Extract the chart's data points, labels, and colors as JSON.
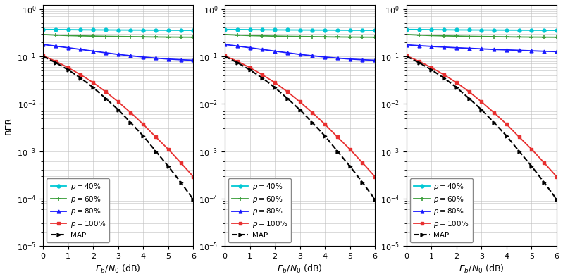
{
  "snr": [
    0,
    0.5,
    1,
    1.5,
    2,
    2.5,
    3,
    3.5,
    4,
    4.5,
    5,
    5.5,
    6
  ],
  "panels": [
    {
      "p40": [
        0.37,
        0.368,
        0.366,
        0.364,
        0.362,
        0.361,
        0.36,
        0.359,
        0.358,
        0.357,
        0.356,
        0.355,
        0.354
      ],
      "p60": [
        0.29,
        0.282,
        0.276,
        0.272,
        0.268,
        0.265,
        0.263,
        0.261,
        0.259,
        0.257,
        0.256,
        0.255,
        0.254
      ],
      "p80": [
        0.178,
        0.165,
        0.152,
        0.14,
        0.129,
        0.119,
        0.11,
        0.103,
        0.097,
        0.092,
        0.088,
        0.085,
        0.083
      ],
      "p100": [
        0.103,
        0.079,
        0.058,
        0.041,
        0.028,
        0.018,
        0.011,
        0.0065,
        0.0037,
        0.002,
        0.0011,
        0.00057,
        0.00029
      ],
      "map": [
        0.1,
        0.074,
        0.052,
        0.035,
        0.022,
        0.013,
        0.0075,
        0.004,
        0.0021,
        0.001,
        0.00048,
        0.00022,
        9.6e-05
      ]
    },
    {
      "p40": [
        0.37,
        0.368,
        0.366,
        0.364,
        0.362,
        0.361,
        0.36,
        0.359,
        0.358,
        0.357,
        0.356,
        0.355,
        0.354
      ],
      "p60": [
        0.29,
        0.282,
        0.276,
        0.272,
        0.268,
        0.265,
        0.263,
        0.261,
        0.259,
        0.257,
        0.256,
        0.255,
        0.254
      ],
      "p80": [
        0.178,
        0.165,
        0.152,
        0.14,
        0.129,
        0.119,
        0.11,
        0.103,
        0.097,
        0.092,
        0.088,
        0.085,
        0.083
      ],
      "p100": [
        0.103,
        0.079,
        0.058,
        0.041,
        0.028,
        0.018,
        0.011,
        0.0065,
        0.0037,
        0.002,
        0.0011,
        0.00057,
        0.00029
      ],
      "map": [
        0.1,
        0.074,
        0.052,
        0.035,
        0.022,
        0.013,
        0.0075,
        0.004,
        0.0021,
        0.001,
        0.00048,
        0.00022,
        9.6e-05
      ]
    },
    {
      "p40": [
        0.37,
        0.368,
        0.366,
        0.364,
        0.362,
        0.361,
        0.36,
        0.359,
        0.358,
        0.357,
        0.356,
        0.355,
        0.354
      ],
      "p60": [
        0.29,
        0.282,
        0.276,
        0.272,
        0.268,
        0.265,
        0.263,
        0.261,
        0.259,
        0.257,
        0.256,
        0.255,
        0.254
      ],
      "p80": [
        0.175,
        0.168,
        0.162,
        0.157,
        0.152,
        0.148,
        0.144,
        0.14,
        0.137,
        0.134,
        0.131,
        0.128,
        0.126
      ],
      "p100": [
        0.103,
        0.079,
        0.058,
        0.041,
        0.028,
        0.018,
        0.011,
        0.0065,
        0.0037,
        0.002,
        0.0011,
        0.00057,
        0.00029
      ],
      "map": [
        0.1,
        0.074,
        0.052,
        0.035,
        0.022,
        0.013,
        0.0075,
        0.004,
        0.0021,
        0.001,
        0.00048,
        0.00022,
        9.6e-05
      ]
    }
  ],
  "colors": {
    "p40": "#00c8d4",
    "p60": "#3a9e3a",
    "p80": "#1a1aff",
    "p100": "#e83030",
    "map": "#000000"
  },
  "legend_labels": {
    "p40": "$p = 40\\%$",
    "p60": "$p = 60\\%$",
    "p80": "$p = 80\\%$",
    "p100": "$p = 100\\%$",
    "map": "MAP"
  },
  "ylabel": "BER",
  "xlabel": "$E_b/N_0$ (dB)",
  "ylim": [
    1e-05,
    1.2
  ],
  "xlim": [
    0,
    6
  ]
}
